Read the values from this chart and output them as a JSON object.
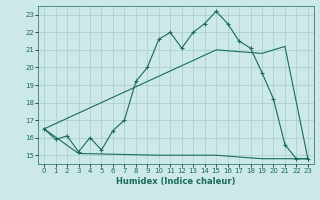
{
  "title": "",
  "xlabel": "Humidex (Indice chaleur)",
  "bg_color": "#cce8e8",
  "grid_color": "#aacccc",
  "line_color": "#1a6b5a",
  "xlim": [
    -0.5,
    23.5
  ],
  "ylim": [
    14.5,
    23.5
  ],
  "xticks": [
    0,
    1,
    2,
    3,
    4,
    5,
    6,
    7,
    8,
    9,
    10,
    11,
    12,
    13,
    14,
    15,
    16,
    17,
    18,
    19,
    20,
    21,
    22,
    23
  ],
  "yticks": [
    15,
    16,
    17,
    18,
    19,
    20,
    21,
    22,
    23
  ],
  "line1_x": [
    0,
    1,
    2,
    3,
    4,
    5,
    6,
    7,
    8,
    9,
    10,
    11,
    12,
    13,
    14,
    15,
    16,
    17,
    18,
    19,
    20,
    21,
    22,
    23
  ],
  "line1_y": [
    16.5,
    15.9,
    16.1,
    15.2,
    16.0,
    15.3,
    16.4,
    17.0,
    19.2,
    20.0,
    21.6,
    22.0,
    21.1,
    22.0,
    22.5,
    23.2,
    22.5,
    21.5,
    21.1,
    19.7,
    18.2,
    15.6,
    14.8,
    14.8
  ],
  "line2_x": [
    0,
    15,
    19,
    21,
    23
  ],
  "line2_y": [
    16.5,
    21.0,
    20.8,
    21.2,
    14.8
  ],
  "line3_x": [
    0,
    3,
    10,
    15,
    19,
    21,
    23
  ],
  "line3_y": [
    16.5,
    15.1,
    15.0,
    15.0,
    14.8,
    14.8,
    14.8
  ]
}
